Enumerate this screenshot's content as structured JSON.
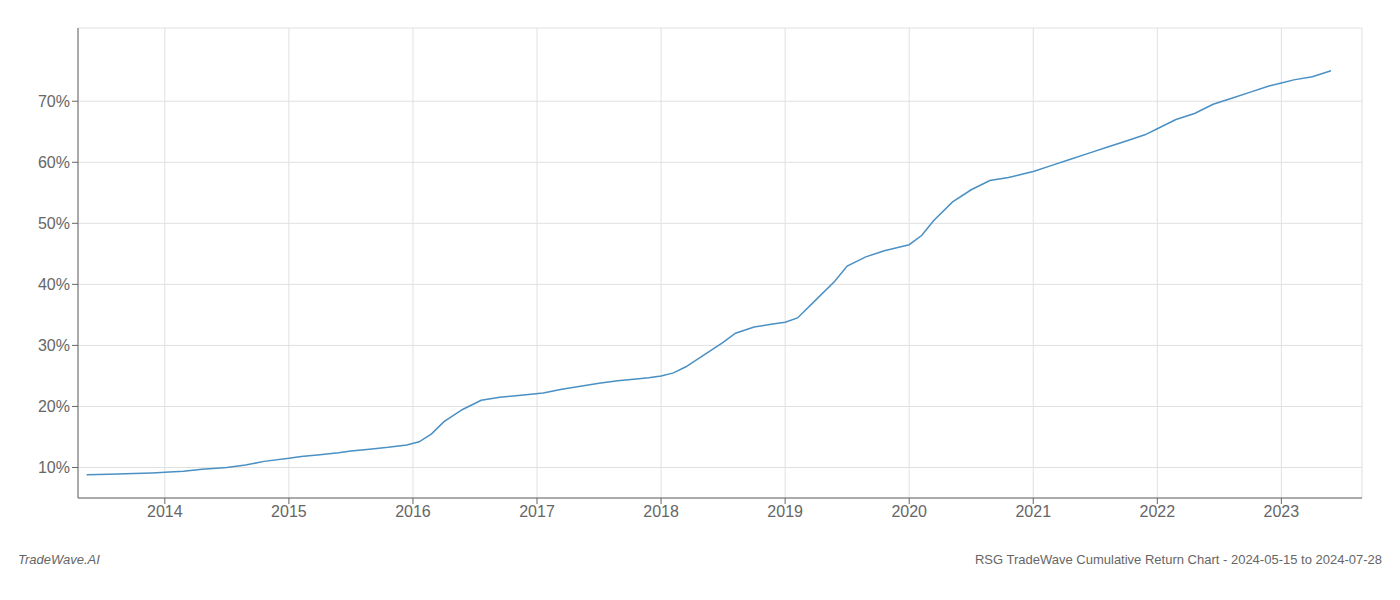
{
  "chart_data": {
    "type": "line",
    "x": [
      2013.37,
      2013.55,
      2013.75,
      2013.9,
      2014.0,
      2014.15,
      2014.3,
      2014.5,
      2014.65,
      2014.8,
      2015.0,
      2015.1,
      2015.25,
      2015.4,
      2015.5,
      2015.65,
      2015.8,
      2015.95,
      2016.05,
      2016.15,
      2016.25,
      2016.4,
      2016.55,
      2016.7,
      2016.85,
      2016.95,
      2017.05,
      2017.2,
      2017.35,
      2017.5,
      2017.65,
      2017.8,
      2017.9,
      2018.0,
      2018.1,
      2018.2,
      2018.35,
      2018.5,
      2018.6,
      2018.75,
      2018.9,
      2019.0,
      2019.1,
      2019.25,
      2019.4,
      2019.5,
      2019.65,
      2019.8,
      2019.9,
      2020.0,
      2020.1,
      2020.2,
      2020.35,
      2020.5,
      2020.65,
      2020.8,
      2020.9,
      2021.0,
      2021.15,
      2021.3,
      2021.45,
      2021.6,
      2021.75,
      2021.9,
      2022.0,
      2022.15,
      2022.3,
      2022.45,
      2022.6,
      2022.75,
      2022.9,
      2023.0,
      2023.1,
      2023.25,
      2023.4
    ],
    "values": [
      8.8,
      8.9,
      9.0,
      9.1,
      9.2,
      9.4,
      9.7,
      10.0,
      10.4,
      11.0,
      11.5,
      11.8,
      12.1,
      12.4,
      12.7,
      13.0,
      13.3,
      13.7,
      14.2,
      15.5,
      17.5,
      19.5,
      21.0,
      21.5,
      21.8,
      22.0,
      22.2,
      22.8,
      23.3,
      23.8,
      24.2,
      24.5,
      24.7,
      25.0,
      25.5,
      26.5,
      28.5,
      30.5,
      32.0,
      33.0,
      33.5,
      33.8,
      34.5,
      37.5,
      40.5,
      43.0,
      44.5,
      45.5,
      46.0,
      46.5,
      48.0,
      50.5,
      53.5,
      55.5,
      57.0,
      57.5,
      58.0,
      58.5,
      59.5,
      60.5,
      61.5,
      62.5,
      63.5,
      64.5,
      65.5,
      67.0,
      68.0,
      69.5,
      70.5,
      71.5,
      72.5,
      73.0,
      73.5,
      74.0,
      75.0
    ],
    "color": "#4a90c4",
    "xlim": [
      2013.3,
      2023.65
    ],
    "ylim": [
      5,
      82
    ],
    "xticks": [
      2014,
      2015,
      2016,
      2017,
      2018,
      2019,
      2020,
      2021,
      2022,
      2023
    ],
    "yticks": [
      {
        "value": 10,
        "label": "10%"
      },
      {
        "value": 20,
        "label": "20%"
      },
      {
        "value": 30,
        "label": "30%"
      },
      {
        "value": 40,
        "label": "40%"
      },
      {
        "value": 50,
        "label": "50%"
      },
      {
        "value": 60,
        "label": "60%"
      },
      {
        "value": 70,
        "label": "70%"
      }
    ],
    "grid": true,
    "annotations": [
      "TradeWave.AI",
      "RSG TradeWave Cumulative Return Chart - 2024-05-15 to 2024-07-28"
    ]
  }
}
